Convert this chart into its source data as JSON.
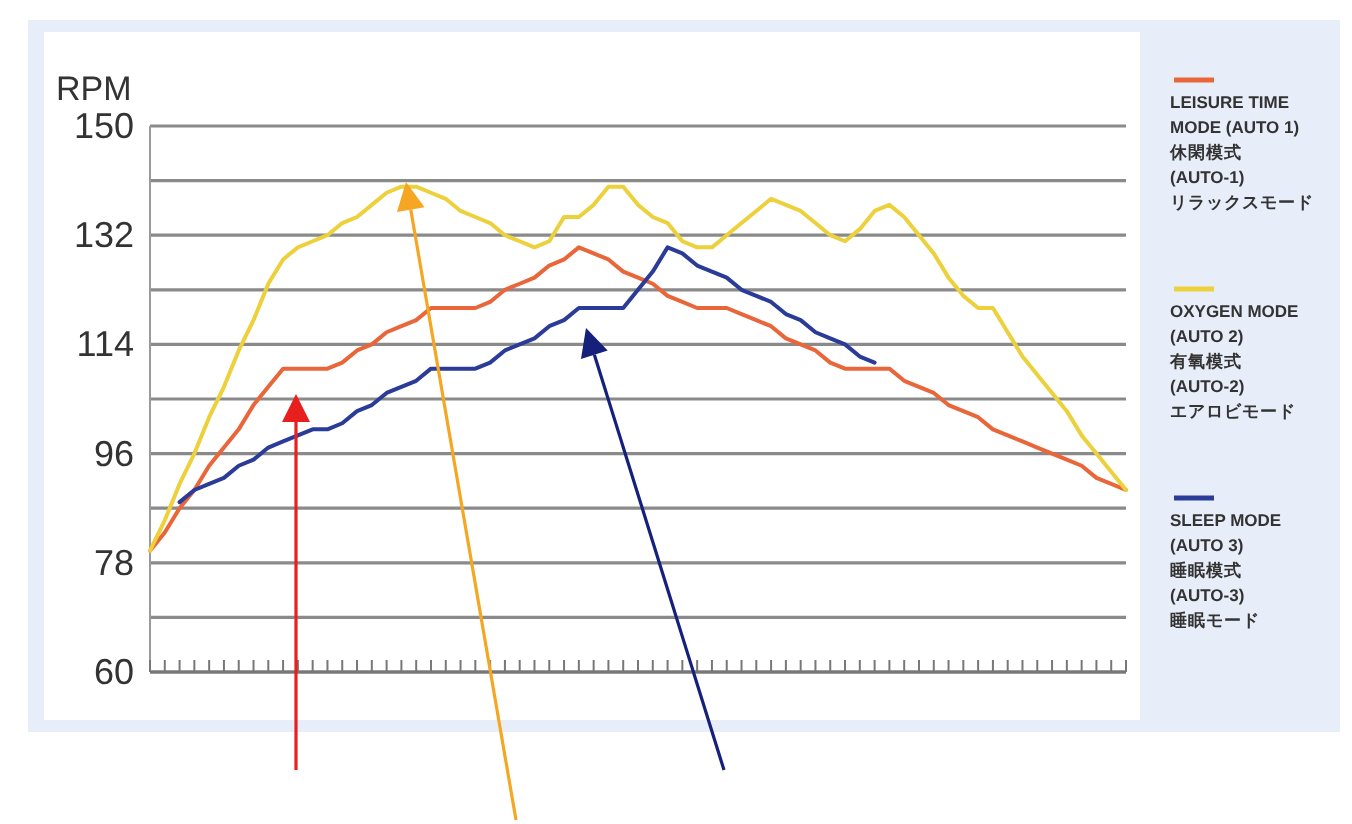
{
  "chart_data": {
    "type": "line",
    "ylabel": "RPM",
    "categories": [
      null,
      null,
      null,
      null,
      null,
      null,
      null,
      null,
      null,
      null,
      null,
      null,
      null,
      null,
      null,
      null,
      null,
      null,
      null,
      null,
      null,
      null,
      null,
      null,
      null,
      null,
      null,
      null,
      null,
      null,
      null,
      null,
      null,
      null,
      null,
      null,
      null,
      null,
      null,
      null,
      null,
      null,
      null,
      null,
      null,
      null,
      null,
      null,
      null,
      null,
      null,
      null,
      null,
      null,
      null,
      null,
      null,
      null,
      null,
      null,
      null,
      null,
      null,
      null,
      null,
      null,
      null
    ],
    "ylim": [
      60,
      150
    ],
    "yticks": [
      60,
      {
        "value": 69,
        "label": null
      },
      78,
      {
        "value": 87,
        "label": null
      },
      96,
      {
        "value": 105,
        "label": null
      },
      114,
      {
        "value": 123,
        "label": null
      },
      132,
      {
        "value": 141,
        "label": null
      },
      150
    ],
    "grid": "y",
    "legend": "right",
    "line_style": "solid",
    "series": [
      {
        "name": "LEISURE TIME\nMODE (AUTO 1)\n休閑模式\n(AUTO-1)\nリラックスモード",
        "color": "#e8663a",
        "values": [
          80,
          83,
          87,
          90,
          94,
          97,
          100,
          104,
          107,
          110,
          110,
          110,
          110,
          111,
          113,
          114,
          116,
          117,
          118,
          120,
          120,
          120,
          120,
          121,
          123,
          124,
          125,
          127,
          128,
          130,
          129,
          128,
          126,
          125,
          124,
          122,
          121,
          120,
          120,
          120,
          119,
          118,
          117,
          115,
          114,
          113,
          111,
          110,
          110,
          110,
          110,
          108,
          107,
          106,
          104,
          103,
          102,
          100,
          99,
          98,
          97,
          96,
          95,
          94,
          92,
          91,
          90
        ]
      },
      {
        "name": "OXYGEN MODE\n(AUTO 2)\n有氧模式\n(AUTO-2)\nエアロビモード",
        "color": "#ecd13c",
        "values": [
          80,
          85,
          91,
          96,
          102,
          107,
          113,
          118,
          124,
          128,
          130,
          131,
          132,
          134,
          135,
          137,
          139,
          140,
          140,
          139,
          138,
          136,
          135,
          134,
          132,
          131,
          130,
          131,
          135,
          135,
          137,
          140,
          140,
          137,
          135,
          134,
          131,
          130,
          130,
          132,
          134,
          136,
          138,
          137,
          136,
          134,
          132,
          131,
          133,
          136,
          137,
          135,
          132,
          129,
          125,
          122,
          120,
          120,
          116,
          112,
          109,
          106,
          103,
          99,
          96,
          93,
          90
        ]
      },
      {
        "name": "SLEEP MODE\n(AUTO 3)\n睡眠模式\n(AUTO-3)\n睡眠モード",
        "color": "#2b3b98",
        "values": [
          null,
          null,
          88,
          90,
          91,
          92,
          94,
          95,
          97,
          98,
          99,
          100,
          100,
          101,
          103,
          104,
          106,
          107,
          108,
          110,
          110,
          110,
          110,
          111,
          113,
          114,
          115,
          117,
          118,
          120,
          120,
          120,
          120,
          123,
          126,
          130,
          129,
          127,
          126,
          125,
          123,
          122,
          121,
          119,
          118,
          116,
          115,
          114,
          112,
          111,
          null,
          null,
          null,
          null,
          null,
          null,
          null,
          null,
          null,
          null,
          null,
          null,
          null,
          null,
          null,
          null,
          null
        ]
      }
    ]
  }
}
